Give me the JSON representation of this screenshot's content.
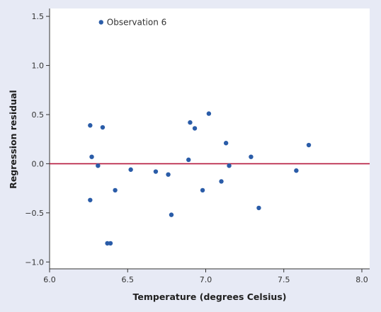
{
  "chart_data": {
    "type": "scatter",
    "xlabel": "Temperature (degrees Celsius)",
    "ylabel": "Regression residual",
    "xlim": [
      6.0,
      8.05
    ],
    "ylim": [
      -1.07,
      1.58
    ],
    "x_ticks": [
      6.0,
      6.5,
      7.0,
      7.5,
      8.0
    ],
    "x_tick_labels": [
      "6.0",
      "6.5",
      "7.0",
      "7.5",
      "8.0"
    ],
    "y_ticks": [
      -1.0,
      -0.5,
      0.0,
      0.5,
      1.0,
      1.5
    ],
    "y_tick_labels": [
      "−1.0",
      "−0.5",
      "0.0",
      "0.5",
      "1.0",
      "1.5"
    ],
    "grid": false,
    "reference_line": {
      "y": 0.0,
      "color": "#b5173b"
    },
    "point_color": "#2a5ca8",
    "series": [
      {
        "points": [
          {
            "x": 6.33,
            "y": 1.44
          },
          {
            "x": 6.26,
            "y": 0.39
          },
          {
            "x": 6.34,
            "y": 0.37
          },
          {
            "x": 6.27,
            "y": 0.07
          },
          {
            "x": 6.31,
            "y": -0.02
          },
          {
            "x": 6.26,
            "y": -0.37
          },
          {
            "x": 6.42,
            "y": -0.27
          },
          {
            "x": 6.37,
            "y": -0.81
          },
          {
            "x": 6.39,
            "y": -0.81
          },
          {
            "x": 6.52,
            "y": -0.06
          },
          {
            "x": 6.68,
            "y": -0.08
          },
          {
            "x": 6.76,
            "y": -0.11
          },
          {
            "x": 6.78,
            "y": -0.52
          },
          {
            "x": 6.89,
            "y": 0.04
          },
          {
            "x": 6.9,
            "y": 0.42
          },
          {
            "x": 6.93,
            "y": 0.36
          },
          {
            "x": 6.98,
            "y": -0.27
          },
          {
            "x": 7.02,
            "y": 0.51
          },
          {
            "x": 7.1,
            "y": -0.18
          },
          {
            "x": 7.13,
            "y": 0.21
          },
          {
            "x": 7.15,
            "y": -0.02
          },
          {
            "x": 7.29,
            "y": 0.07
          },
          {
            "x": 7.34,
            "y": -0.45
          },
          {
            "x": 7.58,
            "y": -0.07
          },
          {
            "x": 7.66,
            "y": 0.19
          }
        ]
      }
    ],
    "annotations": [
      {
        "text": "Observation 6",
        "x": 6.33,
        "y": 1.44
      }
    ]
  }
}
